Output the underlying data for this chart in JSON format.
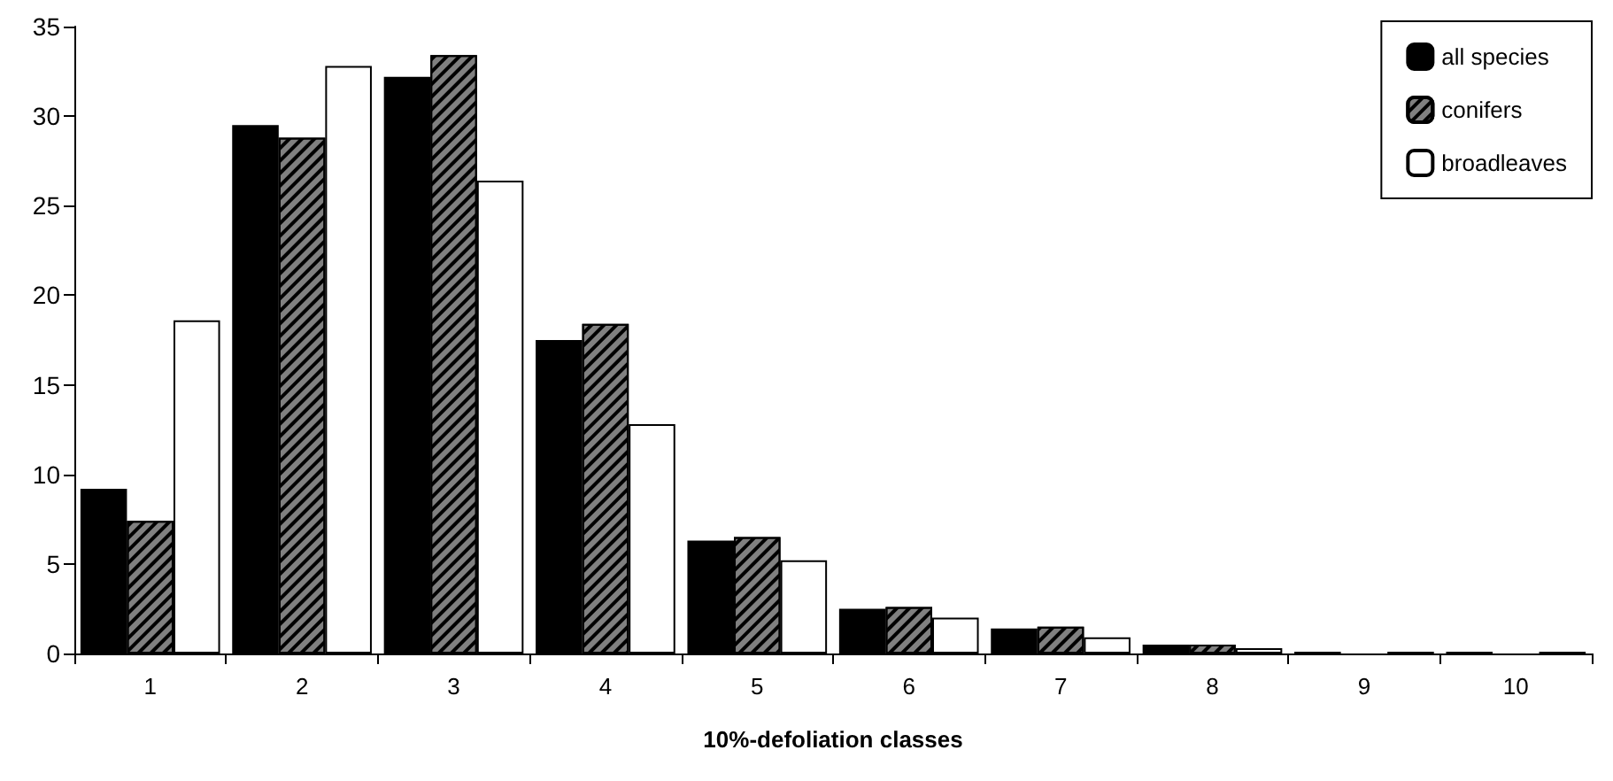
{
  "chart_data": {
    "type": "bar",
    "xlabel": "10%-defoliation classes",
    "categories": [
      "1",
      "2",
      "3",
      "4",
      "5",
      "6",
      "7",
      "8",
      "9",
      "10"
    ],
    "series": [
      {
        "name": "all species",
        "color": "#000000",
        "values": [
          9.2,
          29.5,
          32.2,
          17.5,
          6.3,
          2.5,
          1.4,
          0.5,
          0.1,
          0.1
        ]
      },
      {
        "name": "conifers",
        "color": "#808080",
        "values": [
          7.4,
          28.8,
          33.4,
          18.4,
          6.5,
          2.6,
          1.5,
          0.5,
          null,
          null
        ]
      },
      {
        "name": "broadleaves",
        "color": "#ffffff",
        "values": [
          18.6,
          32.8,
          26.4,
          12.8,
          5.2,
          2.0,
          0.9,
          0.3,
          0.1,
          0.1
        ]
      }
    ],
    "ylim": [
      0,
      35
    ],
    "yticks": [
      0,
      5,
      10,
      15,
      20,
      25,
      30,
      35
    ],
    "grid": false,
    "legend": "top right"
  }
}
